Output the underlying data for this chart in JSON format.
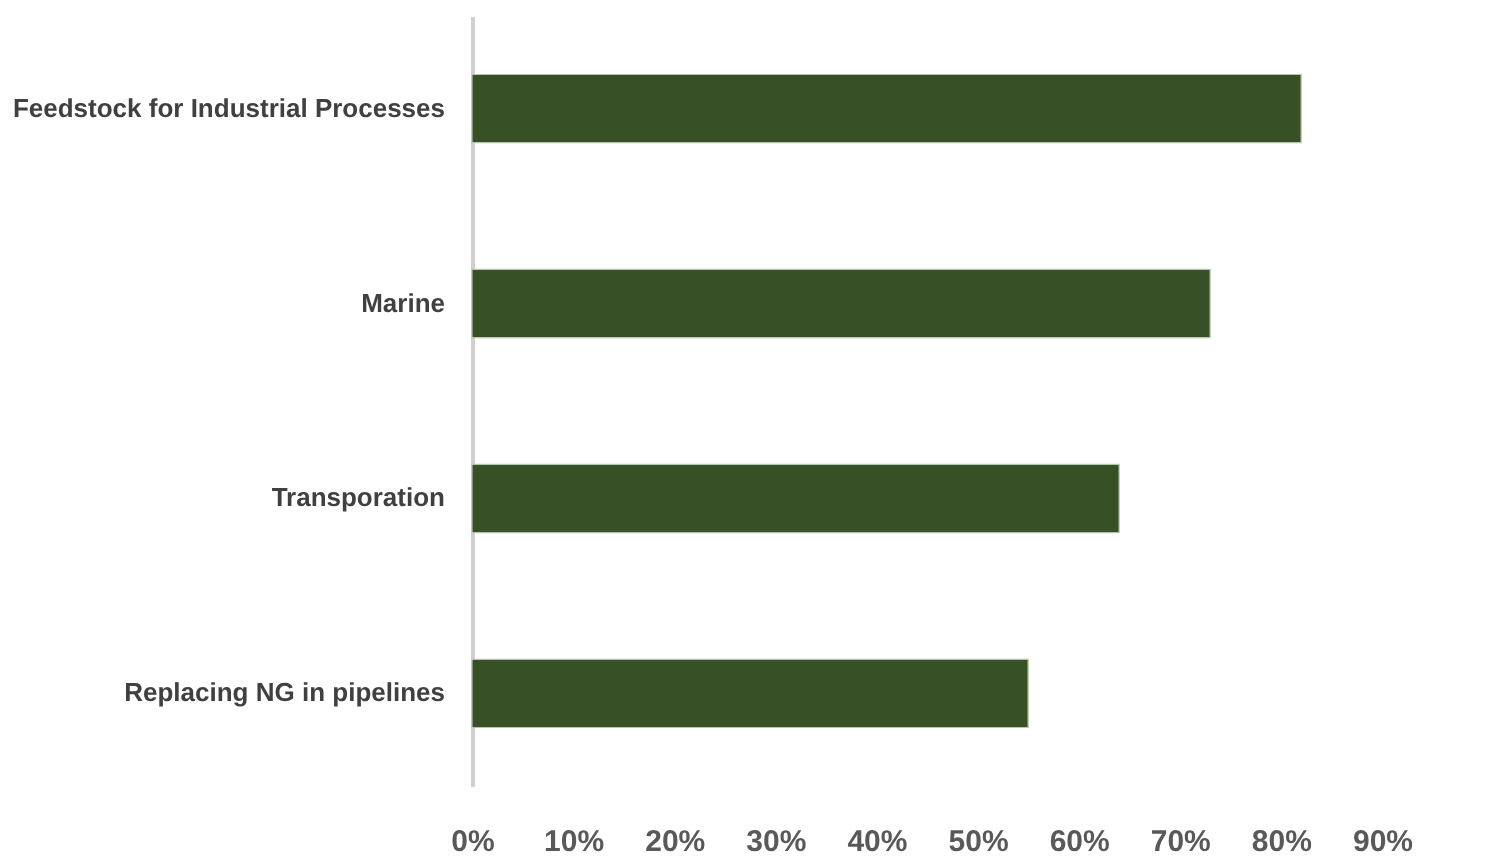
{
  "chart_data": {
    "type": "bar",
    "orientation": "horizontal",
    "categories": [
      "Feedstock for Industrial Processes",
      "Marine",
      "Transporation",
      "Replacing NG in pipelines"
    ],
    "values": [
      82,
      73,
      64,
      55
    ],
    "color": "#385026",
    "xlim": [
      0,
      90
    ],
    "xticks": [
      {
        "value": 0,
        "label": "0%"
      },
      {
        "value": 10,
        "label": "10%"
      },
      {
        "value": 20,
        "label": "20%"
      },
      {
        "value": 30,
        "label": "30%"
      },
      {
        "value": 40,
        "label": "40%"
      },
      {
        "value": 50,
        "label": "50%"
      },
      {
        "value": 60,
        "label": "60%"
      },
      {
        "value": 70,
        "label": "70%"
      },
      {
        "value": 80,
        "label": "80%"
      },
      {
        "value": 90,
        "label": "90%"
      }
    ],
    "grid": false
  }
}
